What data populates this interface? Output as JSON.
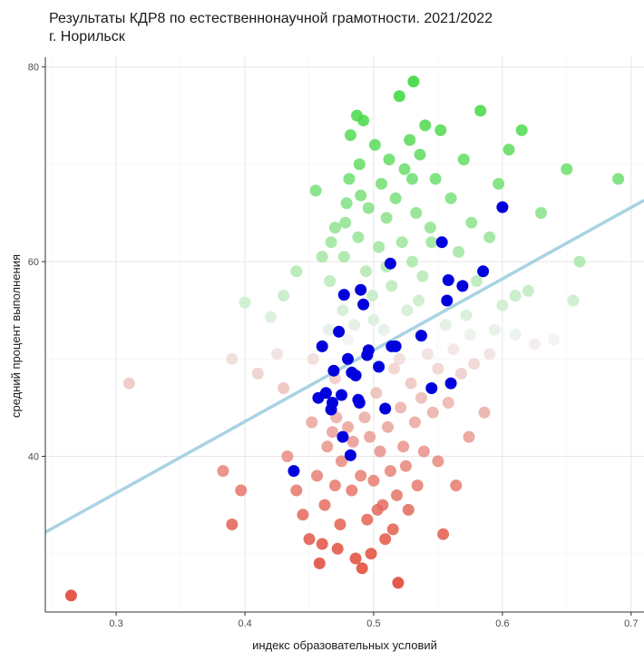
{
  "titles": {
    "line1": "Результаты КДР8 по естественнонаучной грамотности. 2021/2022",
    "line2": "г. Норильск"
  },
  "chart_data": {
    "type": "scatter",
    "title": "Результаты КДР8 по естественнонаучной грамотности. 2021/2022",
    "subtitle": "г. Норильск",
    "xlabel": "индекс образовательных условий",
    "ylabel": "средний процент выполнения",
    "xlim": [
      0.245,
      0.71
    ],
    "ylim": [
      24,
      81
    ],
    "x_ticks": [
      0.3,
      0.4,
      0.5,
      0.6,
      0.7
    ],
    "x_tick_labels": [
      "0.3",
      "0.4",
      "0.5",
      "0.6",
      "0.7"
    ],
    "y_ticks": [
      40,
      60,
      80
    ],
    "y_tick_labels": [
      "40",
      "60",
      "80"
    ],
    "grid": true,
    "legend": "none",
    "colors": {
      "high": "#2fd52f",
      "mid": "#f2f2f2",
      "low": "#e03c2a",
      "highlight": "#0000dd",
      "trend": "#a9d3e3"
    },
    "color_midpoint": 52,
    "trend_line": {
      "x": [
        0.245,
        0.71
      ],
      "y": [
        32.2,
        66.3
      ]
    },
    "highlight_points": [
      [
        0.438,
        38.5
      ],
      [
        0.457,
        46.0
      ],
      [
        0.46,
        51.3
      ],
      [
        0.463,
        46.5
      ],
      [
        0.467,
        44.8
      ],
      [
        0.468,
        45.5
      ],
      [
        0.469,
        48.8
      ],
      [
        0.473,
        52.8
      ],
      [
        0.475,
        46.3
      ],
      [
        0.476,
        42.0
      ],
      [
        0.477,
        56.6
      ],
      [
        0.48,
        50.0
      ],
      [
        0.482,
        40.1
      ],
      [
        0.483,
        48.6
      ],
      [
        0.486,
        48.3
      ],
      [
        0.488,
        45.8
      ],
      [
        0.489,
        45.5
      ],
      [
        0.49,
        57.1
      ],
      [
        0.492,
        55.6
      ],
      [
        0.495,
        50.4
      ],
      [
        0.496,
        50.9
      ],
      [
        0.504,
        49.2
      ],
      [
        0.509,
        44.9
      ],
      [
        0.514,
        51.3
      ],
      [
        0.513,
        59.8
      ],
      [
        0.517,
        51.3
      ],
      [
        0.537,
        52.4
      ],
      [
        0.545,
        47.0
      ],
      [
        0.553,
        62.0
      ],
      [
        0.557,
        56.0
      ],
      [
        0.558,
        58.1
      ],
      [
        0.56,
        47.5
      ],
      [
        0.569,
        57.5
      ],
      [
        0.585,
        59.0
      ],
      [
        0.6,
        65.6
      ]
    ],
    "points": [
      [
        0.265,
        25.7
      ],
      [
        0.31,
        47.5
      ],
      [
        0.39,
        33.0
      ],
      [
        0.383,
        38.5
      ],
      [
        0.397,
        36.5
      ],
      [
        0.4,
        55.8
      ],
      [
        0.41,
        48.5
      ],
      [
        0.42,
        54.3
      ],
      [
        0.43,
        47.0
      ],
      [
        0.425,
        50.5
      ],
      [
        0.433,
        40.0
      ],
      [
        0.44,
        36.5
      ],
      [
        0.445,
        34.0
      ],
      [
        0.45,
        31.5
      ],
      [
        0.452,
        43.5
      ],
      [
        0.455,
        67.3
      ],
      [
        0.456,
        38.0
      ],
      [
        0.458,
        29.0
      ],
      [
        0.46,
        31.0
      ],
      [
        0.462,
        35.0
      ],
      [
        0.464,
        41.0
      ],
      [
        0.465,
        53.0
      ],
      [
        0.466,
        58.0
      ],
      [
        0.467,
        62.0
      ],
      [
        0.468,
        42.5
      ],
      [
        0.47,
        37.0
      ],
      [
        0.471,
        44.0
      ],
      [
        0.472,
        30.5
      ],
      [
        0.474,
        33.0
      ],
      [
        0.475,
        39.5
      ],
      [
        0.476,
        55.0
      ],
      [
        0.477,
        60.5
      ],
      [
        0.478,
        64.0
      ],
      [
        0.479,
        66.0
      ],
      [
        0.48,
        43.0
      ],
      [
        0.481,
        68.5
      ],
      [
        0.482,
        73.0
      ],
      [
        0.483,
        36.5
      ],
      [
        0.484,
        41.5
      ],
      [
        0.485,
        53.5
      ],
      [
        0.486,
        29.5
      ],
      [
        0.487,
        75.0
      ],
      [
        0.488,
        62.5
      ],
      [
        0.489,
        70.0
      ],
      [
        0.49,
        38.0
      ],
      [
        0.491,
        28.5
      ],
      [
        0.492,
        74.5
      ],
      [
        0.493,
        44.0
      ],
      [
        0.494,
        59.0
      ],
      [
        0.495,
        33.5
      ],
      [
        0.496,
        65.5
      ],
      [
        0.497,
        42.0
      ],
      [
        0.498,
        30.0
      ],
      [
        0.499,
        56.5
      ],
      [
        0.5,
        37.5
      ],
      [
        0.501,
        72.0
      ],
      [
        0.502,
        46.5
      ],
      [
        0.503,
        34.5
      ],
      [
        0.504,
        61.5
      ],
      [
        0.505,
        40.5
      ],
      [
        0.506,
        68.0
      ],
      [
        0.507,
        35.0
      ],
      [
        0.508,
        53.0
      ],
      [
        0.509,
        31.5
      ],
      [
        0.51,
        64.5
      ],
      [
        0.511,
        43.0
      ],
      [
        0.512,
        70.5
      ],
      [
        0.513,
        38.5
      ],
      [
        0.514,
        57.5
      ],
      [
        0.515,
        32.5
      ],
      [
        0.516,
        49.0
      ],
      [
        0.517,
        66.5
      ],
      [
        0.518,
        36.0
      ],
      [
        0.519,
        27.0
      ],
      [
        0.52,
        77.0
      ],
      [
        0.521,
        45.0
      ],
      [
        0.522,
        62.0
      ],
      [
        0.523,
        41.0
      ],
      [
        0.524,
        69.5
      ],
      [
        0.525,
        39.0
      ],
      [
        0.526,
        55.0
      ],
      [
        0.527,
        34.5
      ],
      [
        0.528,
        72.5
      ],
      [
        0.529,
        47.5
      ],
      [
        0.53,
        60.0
      ],
      [
        0.531,
        78.5
      ],
      [
        0.532,
        43.5
      ],
      [
        0.533,
        65.0
      ],
      [
        0.534,
        37.0
      ],
      [
        0.535,
        52.5
      ],
      [
        0.536,
        71.0
      ],
      [
        0.537,
        46.0
      ],
      [
        0.538,
        58.5
      ],
      [
        0.539,
        40.5
      ],
      [
        0.54,
        74.0
      ],
      [
        0.542,
        50.5
      ],
      [
        0.544,
        63.5
      ],
      [
        0.546,
        44.5
      ],
      [
        0.548,
        68.5
      ],
      [
        0.55,
        39.5
      ],
      [
        0.552,
        73.5
      ],
      [
        0.554,
        32.0
      ],
      [
        0.556,
        53.5
      ],
      [
        0.558,
        45.5
      ],
      [
        0.56,
        66.5
      ],
      [
        0.562,
        51.0
      ],
      [
        0.564,
        37.0
      ],
      [
        0.566,
        61.0
      ],
      [
        0.568,
        48.5
      ],
      [
        0.57,
        70.5
      ],
      [
        0.572,
        54.5
      ],
      [
        0.574,
        42.0
      ],
      [
        0.576,
        64.0
      ],
      [
        0.578,
        49.5
      ],
      [
        0.58,
        58.0
      ],
      [
        0.583,
        75.5
      ],
      [
        0.586,
        44.5
      ],
      [
        0.59,
        62.5
      ],
      [
        0.594,
        53.0
      ],
      [
        0.597,
        68.0
      ],
      [
        0.6,
        55.5
      ],
      [
        0.605,
        71.5
      ],
      [
        0.61,
        52.5
      ],
      [
        0.615,
        73.5
      ],
      [
        0.62,
        57.0
      ],
      [
        0.63,
        65.0
      ],
      [
        0.64,
        52.0
      ],
      [
        0.65,
        69.5
      ],
      [
        0.655,
        56.0
      ],
      [
        0.66,
        60.0
      ],
      [
        0.69,
        68.5
      ],
      [
        0.39,
        50.0
      ],
      [
        0.43,
        56.5
      ],
      [
        0.44,
        59.0
      ],
      [
        0.453,
        50.0
      ],
      [
        0.46,
        60.5
      ],
      [
        0.47,
        48.0
      ],
      [
        0.48,
        52.0
      ],
      [
        0.5,
        54.0
      ],
      [
        0.52,
        50.0
      ],
      [
        0.535,
        56.0
      ],
      [
        0.55,
        49.0
      ],
      [
        0.575,
        52.5
      ],
      [
        0.59,
        50.5
      ],
      [
        0.61,
        56.5
      ],
      [
        0.625,
        51.5
      ],
      [
        0.47,
        63.5
      ],
      [
        0.49,
        66.8
      ],
      [
        0.51,
        59.5
      ],
      [
        0.53,
        68.5
      ],
      [
        0.545,
        62.0
      ]
    ]
  }
}
